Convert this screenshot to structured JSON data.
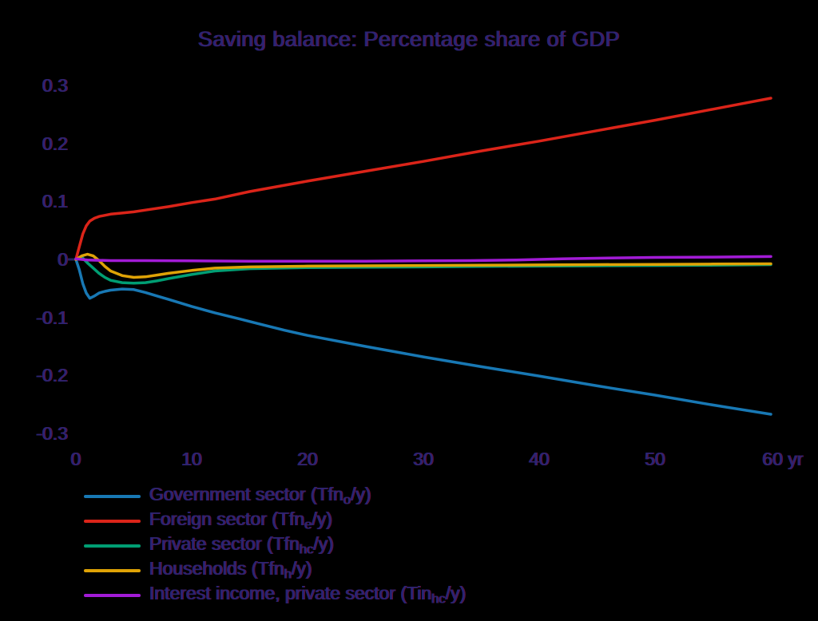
{
  "title": "Saving balance: Percentage share of GDP",
  "chart_data": {
    "type": "line",
    "title": "Saving balance: Percentage share of GDP",
    "xlabel": "",
    "ylabel": "",
    "x_unit": "yr",
    "xlim": [
      0,
      60
    ],
    "ylim": [
      -0.32,
      0.32
    ],
    "grid": false,
    "legend_position": "bottom-left",
    "background": "#000000",
    "text_color": "#2d2472",
    "xticks": [
      {
        "v": 0,
        "label": "0"
      },
      {
        "v": 10,
        "label": "10"
      },
      {
        "v": 20,
        "label": "20"
      },
      {
        "v": 30,
        "label": "30"
      },
      {
        "v": 40,
        "label": "40"
      },
      {
        "v": 50,
        "label": "50"
      },
      {
        "v": 60,
        "label": "60 yr"
      }
    ],
    "yticks": [
      {
        "v": 0.3,
        "label": "0.3"
      },
      {
        "v": 0.2,
        "label": "0.2"
      },
      {
        "v": 0.1,
        "label": "0.1"
      },
      {
        "v": 0,
        "label": "0"
      },
      {
        "v": -0.1,
        "label": "-0.1"
      },
      {
        "v": -0.2,
        "label": "-0.2"
      },
      {
        "v": -0.3,
        "label": "-0.3"
      }
    ],
    "series": [
      {
        "id": "government",
        "name": "Government sector",
        "formula": {
          "base": "Tfn",
          "sub": "o",
          "rest": "/y"
        },
        "label_full": "Government sector (Tfn_o/y)",
        "color": "#1878b4",
        "t": [
          0,
          0.3,
          0.6,
          0.9,
          1.2,
          1.6,
          2,
          2.5,
          3,
          4,
          5,
          6,
          7,
          8,
          10,
          12,
          14,
          16,
          18,
          20,
          25,
          30,
          35,
          40,
          45,
          50,
          55,
          60
        ],
        "v": [
          0,
          -0.018,
          -0.042,
          -0.058,
          -0.067,
          -0.063,
          -0.058,
          -0.055,
          -0.053,
          -0.051,
          -0.052,
          -0.057,
          -0.063,
          -0.069,
          -0.081,
          -0.092,
          -0.102,
          -0.112,
          -0.122,
          -0.131,
          -0.15,
          -0.168,
          -0.185,
          -0.201,
          -0.218,
          -0.234,
          -0.251,
          -0.267
        ]
      },
      {
        "id": "foreign",
        "name": "Foreign sector",
        "formula": {
          "base": "Tfn",
          "sub": "e",
          "rest": "/y"
        },
        "label_full": "Foreign sector (Tfn_e/y)",
        "color": "#db2419",
        "t": [
          0,
          0.3,
          0.6,
          0.9,
          1.2,
          1.6,
          2,
          3,
          4,
          5,
          6,
          8,
          10,
          12,
          15,
          20,
          25,
          30,
          35,
          40,
          45,
          50,
          55,
          60
        ],
        "v": [
          0,
          0.022,
          0.044,
          0.058,
          0.066,
          0.071,
          0.074,
          0.078,
          0.08,
          0.082,
          0.085,
          0.091,
          0.098,
          0.104,
          0.117,
          0.135,
          0.152,
          0.169,
          0.187,
          0.204,
          0.222,
          0.24,
          0.259,
          0.278
        ]
      },
      {
        "id": "private",
        "name": "Private sector",
        "formula": {
          "base": "Tfn",
          "sub": "hc",
          "rest": "/y"
        },
        "label_full": "Private sector (Tfn_hc/y)",
        "color": "#009e73",
        "t": [
          0,
          0.5,
          1,
          1.5,
          2,
          2.5,
          3,
          4,
          5,
          6,
          7,
          8,
          10,
          12,
          15,
          20,
          25,
          30,
          35,
          40,
          45,
          50,
          55,
          60
        ],
        "v": [
          0,
          0.004,
          -0.006,
          -0.015,
          -0.024,
          -0.031,
          -0.036,
          -0.04,
          -0.041,
          -0.04,
          -0.037,
          -0.033,
          -0.026,
          -0.02,
          -0.016,
          -0.014,
          -0.0135,
          -0.013,
          -0.012,
          -0.0115,
          -0.011,
          -0.0105,
          -0.01,
          -0.009
        ]
      },
      {
        "id": "households",
        "name": "Households",
        "formula": {
          "base": "Tfn",
          "sub": "h",
          "rest": "/y"
        },
        "label_full": "Households (Tfn_h/y)",
        "color": "#dfa306",
        "t": [
          0,
          0.5,
          1,
          1.5,
          2,
          2.5,
          3,
          4,
          5,
          6,
          7,
          8,
          10,
          12,
          15,
          20,
          25,
          30,
          35,
          40,
          45,
          50,
          55,
          60
        ],
        "v": [
          0,
          0.006,
          0.009,
          0.006,
          -0.002,
          -0.012,
          -0.02,
          -0.028,
          -0.031,
          -0.03,
          -0.027,
          -0.024,
          -0.019,
          -0.015,
          -0.013,
          -0.0115,
          -0.011,
          -0.0105,
          -0.01,
          -0.0095,
          -0.009,
          -0.0085,
          -0.008,
          -0.0075
        ]
      },
      {
        "id": "interest",
        "name": "Interest income, private sector",
        "formula": {
          "base": "Tin",
          "sub": "hc",
          "rest": "/y"
        },
        "label_full": "Interest income, private sector (Tin_hc/y)",
        "color": "#a21bd6",
        "t": [
          0,
          1,
          3,
          6,
          10,
          15,
          20,
          25,
          30,
          34,
          38,
          42,
          46,
          50,
          55,
          60
        ],
        "v": [
          0.001,
          -0.001,
          -0.002,
          -0.002,
          -0.0025,
          -0.003,
          -0.003,
          -0.003,
          -0.0025,
          -0.002,
          -0.001,
          0.001,
          0.0025,
          0.0035,
          0.004,
          0.005
        ]
      }
    ]
  }
}
